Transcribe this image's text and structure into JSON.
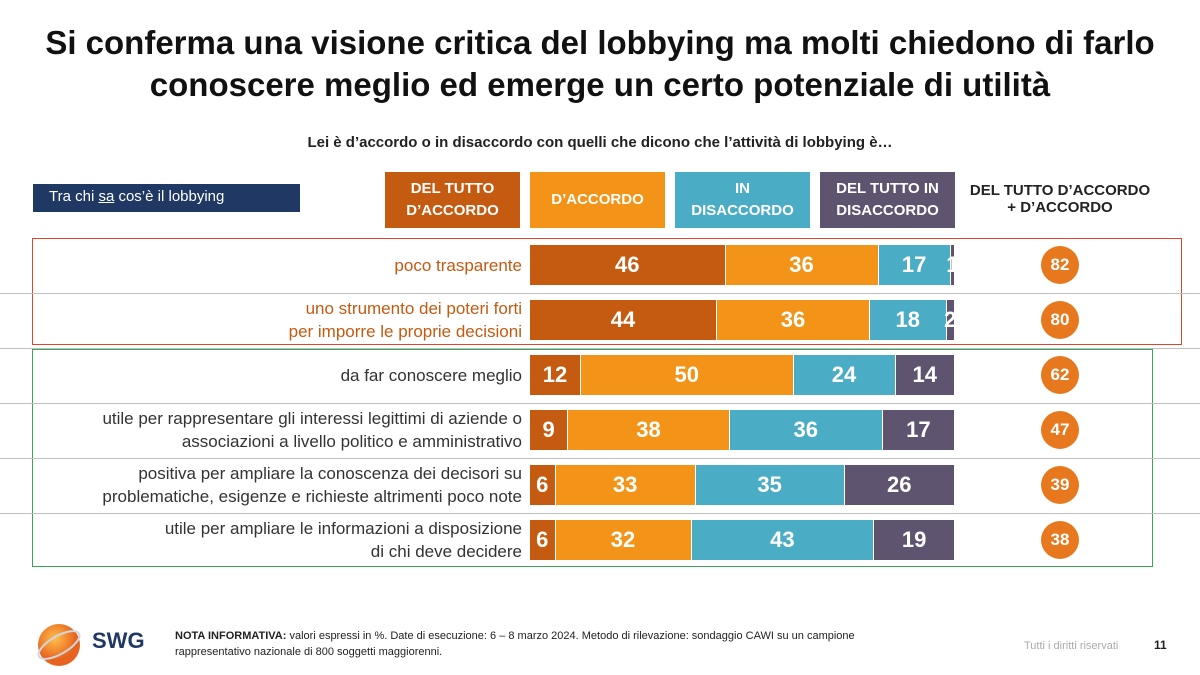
{
  "chart_data": {
    "type": "bar",
    "orientation": "horizontal",
    "stacked": true,
    "title": "Si conferma una visione critica del lobbying ma molti chiedono di farlo\nconoscere meglio ed emerge un certo potenziale di utilità",
    "subtitle": "Lei è d’accordo o in disaccordo con quelli che dicono che l’attività di lobbying è…",
    "filter_label": [
      "Tra chi ",
      "sa",
      " cos’è il lobbying"
    ],
    "categories": [
      "poco trasparente",
      "uno strumento dei poteri forti\nper imporre le proprie decisioni",
      "da far conoscere meglio",
      "utile per rappresentare gli interessi legittimi di aziende o\nassociazioni a livello politico e amministrativo",
      "positiva per ampliare la conoscenza dei decisori su\nproblematiche, esigenze e richieste altrimenti poco note",
      "utile per ampliare le informazioni a disposizione\ndi chi deve decidere"
    ],
    "category_colors": [
      "#c55a11",
      "#c55a11",
      "#333333",
      "#333333",
      "#333333",
      "#333333"
    ],
    "series": [
      {
        "name": "DEL TUTTO\nD’ACCORDO",
        "color": "#c55a11",
        "values": [
          46,
          44,
          12,
          9,
          6,
          6
        ]
      },
      {
        "name": "D’ACCORDO",
        "color": "#f39419",
        "values": [
          36,
          36,
          50,
          38,
          33,
          32
        ]
      },
      {
        "name": "IN\nDISACCORDO",
        "color": "#4bacc6",
        "values": [
          17,
          18,
          24,
          36,
          35,
          43
        ]
      },
      {
        "name": "DEL TUTTO IN\nDISACCORDO",
        "color": "#5f5470",
        "values": [
          1,
          2,
          14,
          17,
          26,
          19
        ]
      }
    ],
    "xlim": [
      0,
      100
    ],
    "net_label": "DEL TUTTO D’ACCORDO\n+ D’ACCORDO",
    "net_values": [
      82,
      80,
      62,
      47,
      39,
      38
    ],
    "net_color": "#e8781e",
    "note_label": "NOTA INFORMATIVA:",
    "note": " valori espressi in %. Date di esecuzione: 6 – 8 marzo 2024. Metodo di rilevazione: sondaggio CAWI su un campione\nrappresentativo nazionale di 800 soggetti maggiorenni.",
    "logo": "SWG",
    "rights": "Tutti i diritti riservati",
    "page_number": 11
  }
}
